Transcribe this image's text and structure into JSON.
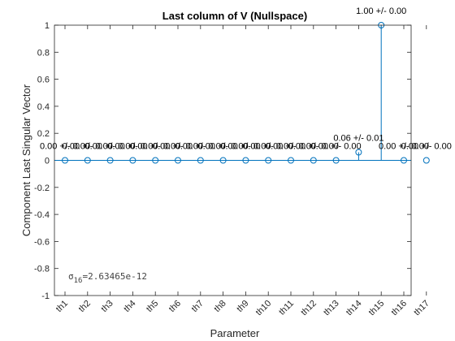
{
  "chart_data": {
    "type": "stem",
    "title": "Last column of V (Nullspace)",
    "xlabel": "Parameter",
    "ylabel": "Component Last Singular Vector",
    "categories": [
      "th1",
      "th2",
      "th3",
      "th4",
      "th5",
      "th6",
      "th7",
      "th8",
      "th9",
      "th10",
      "th11",
      "th12",
      "th13",
      "th14",
      "th15",
      "th16",
      "th17"
    ],
    "values": [
      0,
      0,
      0,
      0,
      0,
      0,
      0,
      0,
      0,
      0,
      0,
      0,
      0,
      0.06,
      1.0,
      0,
      0
    ],
    "labels": [
      "0.00 +/- 0.00",
      "0.00 +/- 0.00",
      "0.00 +/- 0.00",
      "0.00 +/- 0.00",
      "0.00 +/- 0.00",
      "0.00 +/- 0.00",
      "0.00 +/- 0.00",
      "0.00 +/- 0.00",
      "0.00 +/- 0.00",
      "0.00 +/- 0.00",
      "0.00 +/- 0.00",
      "0.00 +/- 0.00",
      "0.00 +/- 0.00",
      "0.06 +/- 0.01",
      "1.00 +/- 0.00",
      "0.00 +/- 0.00",
      "0.00 +/- 0.00"
    ],
    "ylim": [
      -1,
      1
    ],
    "yticks": [
      -1,
      -0.8,
      -0.6,
      -0.4,
      -0.2,
      0,
      0.2,
      0.4,
      0.6,
      0.8,
      1
    ],
    "ytick_labels": [
      "-1",
      "-0.8",
      "-0.6",
      "-0.4",
      "-0.2",
      "0",
      "0.2",
      "0.4",
      "0.6",
      "0.8",
      "1"
    ],
    "grid": false,
    "annotation": {
      "symbol": "σ",
      "subscript": "16",
      "text": "=2.63465e-12"
    },
    "colors": {
      "stem": "#0072BD",
      "axes": "#262626",
      "text": "#000000"
    }
  }
}
